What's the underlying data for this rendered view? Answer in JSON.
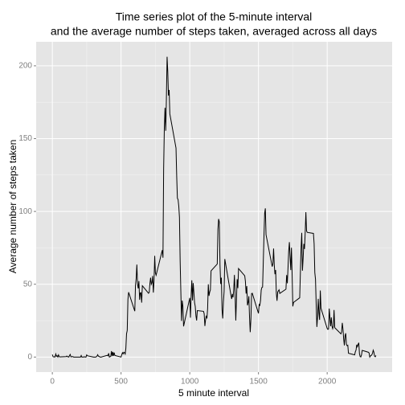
{
  "chart_data": {
    "type": "line",
    "title": "Time series plot of the 5-minute interval",
    "subtitle": "and the average number of steps taken, averaged across all days",
    "x_label": "5 minute interval",
    "y_label": "Average number of steps taken",
    "xlim": [
      -117.75,
      2472.75
    ],
    "xticks": [
      0,
      500,
      1000,
      1500,
      2000
    ],
    "ylim": [
      -10.3,
      216.5
    ],
    "yticks": [
      0,
      50,
      100,
      150,
      200
    ],
    "grid": true,
    "series": [
      {
        "color": "#000000",
        "x": [
          0,
          5,
          10,
          15,
          20,
          25,
          30,
          35,
          40,
          45,
          50,
          55,
          100,
          105,
          110,
          115,
          120,
          125,
          130,
          135,
          140,
          145,
          150,
          155,
          200,
          205,
          210,
          215,
          220,
          225,
          230,
          235,
          240,
          245,
          250,
          255,
          300,
          305,
          310,
          315,
          320,
          325,
          330,
          335,
          340,
          345,
          350,
          355,
          400,
          405,
          410,
          415,
          420,
          425,
          430,
          435,
          440,
          445,
          450,
          455,
          500,
          505,
          510,
          515,
          520,
          525,
          530,
          535,
          540,
          545,
          550,
          555,
          600,
          605,
          610,
          615,
          620,
          625,
          630,
          635,
          640,
          645,
          650,
          655,
          700,
          705,
          710,
          715,
          720,
          725,
          730,
          735,
          740,
          745,
          750,
          755,
          800,
          805,
          810,
          815,
          820,
          825,
          830,
          835,
          840,
          845,
          850,
          855,
          900,
          905,
          910,
          915,
          920,
          925,
          930,
          935,
          940,
          945,
          950,
          955,
          1000,
          1005,
          1010,
          1015,
          1020,
          1025,
          1030,
          1035,
          1040,
          1045,
          1050,
          1055,
          1100,
          1105,
          1110,
          1115,
          1120,
          1125,
          1130,
          1135,
          1140,
          1145,
          1150,
          1155,
          1200,
          1205,
          1210,
          1215,
          1220,
          1225,
          1230,
          1235,
          1240,
          1245,
          1250,
          1255,
          1300,
          1305,
          1310,
          1315,
          1320,
          1325,
          1330,
          1335,
          1340,
          1345,
          1350,
          1355,
          1400,
          1405,
          1410,
          1415,
          1420,
          1425,
          1430,
          1435,
          1440,
          1445,
          1450,
          1455,
          1500,
          1505,
          1510,
          1515,
          1520,
          1525,
          1530,
          1535,
          1540,
          1545,
          1550,
          1555,
          1600,
          1605,
          1610,
          1615,
          1620,
          1625,
          1630,
          1635,
          1640,
          1645,
          1650,
          1655,
          1700,
          1705,
          1710,
          1715,
          1720,
          1725,
          1730,
          1735,
          1740,
          1745,
          1750,
          1755,
          1800,
          1805,
          1810,
          1815,
          1820,
          1825,
          1830,
          1835,
          1840,
          1845,
          1850,
          1855,
          1900,
          1905,
          1910,
          1915,
          1920,
          1925,
          1930,
          1935,
          1940,
          1945,
          1950,
          1955,
          2000,
          2005,
          2010,
          2015,
          2020,
          2025,
          2030,
          2035,
          2040,
          2045,
          2050,
          2055,
          2100,
          2105,
          2110,
          2115,
          2120,
          2125,
          2130,
          2135,
          2140,
          2145,
          2150,
          2155,
          2200,
          2205,
          2210,
          2215,
          2220,
          2225,
          2230,
          2235,
          2240,
          2245,
          2250,
          2255,
          2300,
          2305,
          2310,
          2315,
          2320,
          2325,
          2330,
          2335,
          2340,
          2345,
          2350,
          2355
        ],
        "values": [
          1.7,
          0.3,
          0.1,
          0.2,
          0.1,
          2.1,
          0.5,
          0.9,
          0,
          1.5,
          0.3,
          0.1,
          0.3,
          0.7,
          0.2,
          0.3,
          0,
          1.1,
          1.8,
          0.2,
          0.2,
          0.4,
          0.3,
          0,
          0,
          0,
          1.1,
          0,
          0,
          0.1,
          0,
          0.2,
          0,
          0,
          1.5,
          0.9,
          0,
          0,
          0,
          0,
          0.2,
          0.6,
          1.6,
          0.6,
          0.5,
          0.1,
          0,
          0,
          1.2,
          0.9,
          2.6,
          0,
          0.3,
          0.4,
          4.1,
          0.7,
          3.5,
          0.8,
          3.1,
          1.1,
          0,
          1.6,
          3.0,
          2.2,
          3.3,
          3.0,
          2.1,
          6.1,
          16.0,
          18.3,
          39.5,
          44.5,
          31.5,
          49.3,
          53.8,
          63.5,
          50.0,
          47.1,
          52.2,
          39.3,
          44.0,
          44.2,
          37.4,
          49.0,
          43.8,
          44.4,
          50.5,
          54.5,
          49.9,
          51.0,
          55.7,
          44.3,
          52.3,
          69.5,
          57.8,
          56.2,
          73.4,
          68.2,
          129.4,
          157.5,
          171.2,
          155.4,
          177.3,
          206.2,
          195.9,
          179.6,
          183.4,
          167.0,
          143.5,
          124.0,
          109.1,
          108.1,
          103.7,
          96.0,
          66.2,
          45.2,
          24.8,
          38.8,
          35.0,
          21.1,
          40.6,
          27.0,
          42.4,
          52.7,
          38.9,
          50.8,
          44.3,
          37.4,
          34.7,
          28.3,
          25.1,
          31.9,
          31.4,
          29.7,
          21.3,
          25.5,
          28.4,
          26.5,
          33.4,
          50.0,
          42.0,
          44.6,
          46.0,
          59.2,
          63.9,
          87.7,
          94.8,
          92.8,
          63.4,
          50.2,
          54.5,
          32.4,
          26.5,
          37.7,
          45.1,
          67.3,
          42.3,
          39.9,
          43.3,
          41.0,
          46.2,
          56.4,
          42.8,
          25.1,
          40.0,
          53.5,
          47.3,
          60.8,
          55.8,
          52.0,
          43.6,
          48.7,
          35.5,
          37.5,
          41.8,
          27.5,
          17.1,
          26.1,
          43.6,
          43.8,
          30.0,
          36.1,
          35.5,
          38.8,
          46.0,
          47.8,
          48.1,
          65.3,
          82.9,
          98.7,
          102.1,
          84.0,
          62.1,
          64.1,
          74.5,
          63.2,
          56.9,
          59.8,
          43.9,
          38.6,
          44.7,
          45.5,
          46.2,
          43.7,
          46.6,
          56.3,
          50.7,
          61.2,
          72.7,
          78.9,
          68.9,
          59.7,
          75.1,
          56.5,
          34.8,
          37.5,
          40.7,
          58.0,
          74.7,
          85.3,
          59.3,
          67.8,
          77.7,
          74.2,
          85.3,
          99.5,
          86.6,
          85.6,
          84.9,
          77.8,
          58.0,
          53.4,
          36.3,
          20.7,
          27.4,
          40.0,
          30.2,
          25.5,
          45.7,
          33.5,
          19.6,
          19.0,
          19.3,
          33.3,
          26.8,
          21.2,
          27.3,
          21.3,
          19.5,
          21.3,
          32.3,
          20.2,
          15.9,
          17.2,
          23.5,
          19.2,
          12.5,
          8.0,
          14.7,
          16.3,
          8.7,
          7.8,
          8.1,
          2.6,
          1.5,
          3.7,
          4.8,
          8.5,
          7.1,
          8.7,
          9.8,
          2.2,
          0.3,
          0.1,
          1.6,
          4.6,
          3.3,
          2.8,
          0,
          0.8,
          1.0,
          1.6,
          2.6,
          4.7,
          3.3,
          0.6,
          0.2,
          1.1
        ]
      }
    ]
  }
}
